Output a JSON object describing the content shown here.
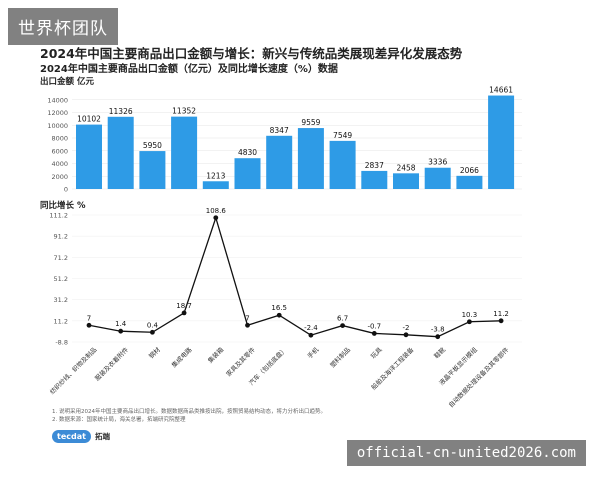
{
  "watermark_top": "世界杯团队",
  "watermark_bottom": "official-cn-united2026.com",
  "tiny_mark": "",
  "notes": [
    "1. 说明采用2024年中国主要商品出口增长。数据数据商品类推按出院，按照贸易结构动态，将力分析出口趋势。",
    "2. 数据来源：国家统计局，海关总署，拓端研究院整理"
  ],
  "logo": {
    "circle": "tecdat",
    "text": "拓端"
  },
  "chart_data": [
    {
      "type": "bar",
      "title": "2024年中国主要商品出口金额与增长：新兴与传统品类展现差异化发展态势",
      "subtitle": "2024年中国主要商品出口金额（亿元）及同比增长速度（%）数据",
      "ylabel": "出口金额  亿元",
      "ylim": [
        0,
        16000
      ],
      "yticks": [
        0,
        2000,
        4000,
        6000,
        8000,
        10000,
        12000,
        14000
      ],
      "color": "#2e9be6",
      "categories": [
        "纺织纱线、织物及制品",
        "服装及衣着附件",
        "钢材",
        "集成电路",
        "集装箱",
        "家具及其零件",
        "汽车（包括底盘）",
        "手机",
        "塑料制品",
        "玩具",
        "船舶及海洋工程装备",
        "鞋靴",
        "液晶平板显示模组",
        "自动数据处理设备及其零部件"
      ],
      "values": [
        10102,
        11326,
        5950,
        11352,
        1213,
        4830,
        8347,
        9559,
        7549,
        2837,
        2458,
        3336,
        2066,
        14661
      ]
    },
    {
      "type": "line",
      "ylabel": "同比增长  %",
      "ylim": [
        -8.8,
        111.2
      ],
      "yticks": [
        -8.8,
        11.2,
        31.2,
        51.2,
        71.2,
        91.2,
        111.2
      ],
      "labels": [
        "纺织纱线、织物及制品",
        "服装及衣着附件",
        "钢材",
        "集成电路",
        "集装箱",
        "家具及其零件",
        "汽车（包括底盘）",
        "手机",
        "塑料制品",
        "玩具",
        "船舶及海洋工程装备",
        "鞋靴",
        "液晶平板显示模组",
        "自动数据处理设备及其零部件"
      ],
      "label_points": [
        0,
        1,
        2,
        3,
        4,
        5,
        6,
        7,
        8,
        9,
        10,
        11,
        12,
        13
      ],
      "values": [
        7,
        1.4,
        0.4,
        18.7,
        108.6,
        7,
        16.5,
        -2.4,
        6.7,
        -0.7,
        -2,
        -3.8,
        10.3,
        11.2
      ],
      "value_labels": [
        "7",
        "1.4",
        "0.4",
        "18.7",
        "108.6",
        "7",
        "16.5",
        "-2.4",
        "6.7",
        "-0.7",
        "-2",
        "-3.8",
        "10.3",
        "11.2"
      ],
      "x_labels_shown": [
        "纺织纱线、织物及制品",
        "服装及衣着附件",
        "钢材",
        "集成电路",
        "集装箱",
        "家具及其零件",
        "汽车（包括底盘）",
        "手机",
        "塑料制品",
        "玩具",
        "船舶及海洋工程装备",
        "鞋靴",
        "液晶平板显示模组",
        "自动数据处理设备及其零部件"
      ],
      "color": "#111111"
    }
  ]
}
